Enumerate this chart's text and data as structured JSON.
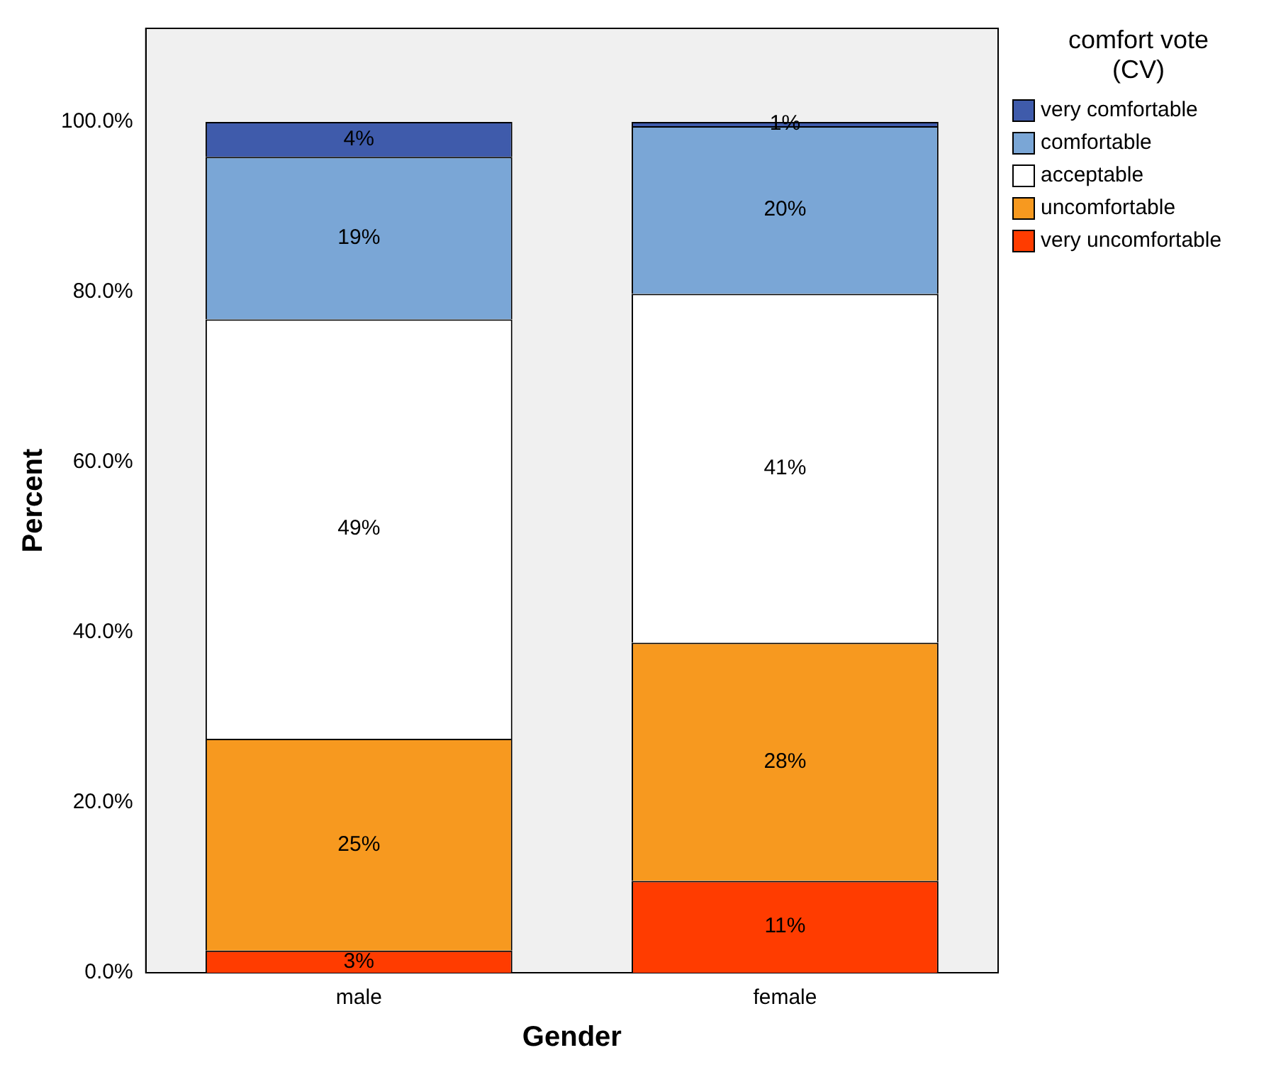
{
  "chart_data": {
    "type": "bar",
    "stacked": true,
    "xlabel": "Gender",
    "ylabel": "Percent",
    "legend_title": "comfort vote (CV)",
    "legend": "top right",
    "grid": false,
    "categories": [
      "male",
      "female"
    ],
    "ylim": [
      0,
      111
    ],
    "yticks": [
      {
        "value": 0,
        "label": "0.0%"
      },
      {
        "value": 20,
        "label": "20.0%"
      },
      {
        "value": 40,
        "label": "40.0%"
      },
      {
        "value": 60,
        "label": "60.0%"
      },
      {
        "value": 80,
        "label": "80.0%"
      },
      {
        "value": 100,
        "label": "100.0%"
      }
    ],
    "series": [
      {
        "name": "very uncomfortable",
        "color": "#ff3c00",
        "values": [
          2.6,
          10.8
        ],
        "value_labels": [
          "3%",
          "11%"
        ]
      },
      {
        "name": "uncomfortable",
        "color": "#f7991f",
        "values": [
          24.9,
          28.0
        ],
        "value_labels": [
          "25%",
          "28%"
        ]
      },
      {
        "name": "acceptable",
        "color": "#ffffff",
        "values": [
          49.3,
          41.0
        ],
        "value_labels": [
          "49%",
          "41%"
        ]
      },
      {
        "name": "comfortable",
        "color": "#7aa6d6",
        "values": [
          19.1,
          19.7
        ],
        "value_labels": [
          "19%",
          "20%"
        ]
      },
      {
        "name": "very comfortable",
        "color": "#3f5bab",
        "values": [
          4.1,
          0.5
        ],
        "value_labels": [
          "4%",
          "1%"
        ]
      }
    ]
  }
}
